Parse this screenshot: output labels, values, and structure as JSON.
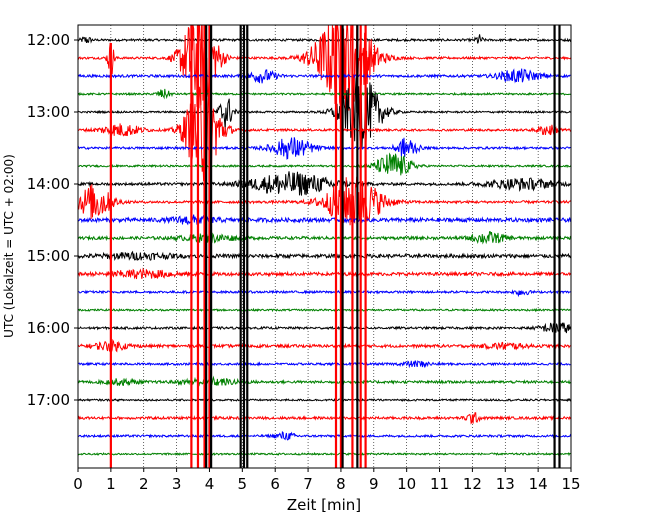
{
  "chart_data": {
    "type": "line",
    "title": "",
    "xlabel": "Zeit  [min]",
    "ylabel": "UTC (Lokalzeit = UTC + 02:00)",
    "xlim": [
      0,
      15
    ],
    "x_ticks": [
      0,
      1,
      2,
      3,
      4,
      5,
      6,
      7,
      8,
      9,
      10,
      11,
      12,
      13,
      14,
      15
    ],
    "x_tick_labels": [
      "0",
      "1",
      "2",
      "3",
      "4",
      "5",
      "6",
      "7",
      "8",
      "9",
      "10",
      "11",
      "12",
      "13",
      "14",
      "15"
    ],
    "y_tick_labels": [
      "12:00",
      "13:00",
      "14:00",
      "15:00",
      "16:00",
      "17:00"
    ],
    "y_tick_rows": [
      0,
      4,
      8,
      12,
      16,
      20
    ],
    "grid": "x dotted",
    "trace_colors": [
      "#000000",
      "#ff0000",
      "#0000ff",
      "#008000"
    ],
    "series": [
      {
        "start": "12:00",
        "amplitude": 0.12,
        "events": [
          {
            "t": 0.25,
            "w": 0.15,
            "a": 0.4
          },
          {
            "t": 12.2,
            "w": 0.1,
            "a": 0.6
          }
        ]
      },
      {
        "start": "12:15",
        "amplitude": 0.12,
        "events": [
          {
            "t": 3.7,
            "w": 0.5,
            "a": 6
          },
          {
            "t": 8.1,
            "w": 0.8,
            "a": 6
          },
          {
            "t": 1.0,
            "w": 0.1,
            "a": 2
          }
        ]
      },
      {
        "start": "12:30",
        "amplitude": 0.14,
        "events": [
          {
            "t": 5.6,
            "w": 0.4,
            "a": 0.7
          },
          {
            "t": 13.4,
            "w": 0.6,
            "a": 0.7
          }
        ]
      },
      {
        "start": "12:45",
        "amplitude": 0.1,
        "events": [
          {
            "t": 2.6,
            "w": 0.2,
            "a": 0.5
          }
        ]
      },
      {
        "start": "13:00",
        "amplitude": 0.1,
        "events": [
          {
            "t": 8.6,
            "w": 0.6,
            "a": 4
          },
          {
            "t": 4.5,
            "w": 0.2,
            "a": 2
          }
        ]
      },
      {
        "start": "13:15",
        "amplitude": 0.12,
        "events": [
          {
            "t": 1.3,
            "w": 0.6,
            "a": 0.7
          },
          {
            "t": 3.8,
            "w": 0.5,
            "a": 6
          },
          {
            "t": 14.3,
            "w": 0.3,
            "a": 0.6
          }
        ]
      },
      {
        "start": "13:30",
        "amplitude": 0.12,
        "events": [
          {
            "t": 6.5,
            "w": 0.6,
            "a": 1.2
          },
          {
            "t": 10.0,
            "w": 0.3,
            "a": 1.2
          }
        ]
      },
      {
        "start": "13:45",
        "amplitude": 0.1,
        "events": [
          {
            "t": 9.6,
            "w": 0.5,
            "a": 1.5
          }
        ]
      },
      {
        "start": "14:00",
        "amplitude": 0.14,
        "events": [
          {
            "t": 6.5,
            "w": 1.2,
            "a": 1.3
          },
          {
            "t": 13.5,
            "w": 1.0,
            "a": 0.6
          }
        ]
      },
      {
        "start": "14:15",
        "amplitude": 0.14,
        "events": [
          {
            "t": 0.5,
            "w": 0.5,
            "a": 2
          },
          {
            "t": 8.4,
            "w": 0.8,
            "a": 3
          }
        ]
      },
      {
        "start": "14:30",
        "amplitude": 0.22,
        "events": [
          {
            "t": 3.5,
            "w": 0.6,
            "a": 0.4
          }
        ]
      },
      {
        "start": "14:45",
        "amplitude": 0.16,
        "events": [
          {
            "t": 12.5,
            "w": 0.5,
            "a": 0.6
          },
          {
            "t": 4.0,
            "w": 0.8,
            "a": 0.4
          }
        ]
      },
      {
        "start": "15:00",
        "amplitude": 0.2,
        "events": [
          {
            "t": 1.8,
            "w": 1.0,
            "a": 0.3
          }
        ]
      },
      {
        "start": "15:15",
        "amplitude": 0.18,
        "events": [
          {
            "t": 2.0,
            "w": 1.0,
            "a": 0.4
          }
        ]
      },
      {
        "start": "15:30",
        "amplitude": 0.12,
        "events": [
          {
            "t": 13.5,
            "w": 0.2,
            "a": 0.4
          }
        ]
      },
      {
        "start": "15:45",
        "amplitude": 0.1,
        "events": []
      },
      {
        "start": "16:00",
        "amplitude": 0.12,
        "events": [
          {
            "t": 14.6,
            "w": 0.5,
            "a": 0.6
          }
        ]
      },
      {
        "start": "16:15",
        "amplitude": 0.16,
        "events": [
          {
            "t": 1.0,
            "w": 0.5,
            "a": 0.5
          },
          {
            "t": 13.0,
            "w": 0.6,
            "a": 0.3
          }
        ]
      },
      {
        "start": "16:30",
        "amplitude": 0.12,
        "events": [
          {
            "t": 10.3,
            "w": 0.4,
            "a": 0.3
          }
        ]
      },
      {
        "start": "16:45",
        "amplitude": 0.14,
        "events": [
          {
            "t": 4.0,
            "w": 0.8,
            "a": 0.4
          },
          {
            "t": 1.3,
            "w": 0.5,
            "a": 0.3
          }
        ]
      },
      {
        "start": "17:00",
        "amplitude": 0.1,
        "events": []
      },
      {
        "start": "17:15",
        "amplitude": 0.14,
        "events": [
          {
            "t": 12.0,
            "w": 0.2,
            "a": 0.6
          }
        ]
      },
      {
        "start": "17:30",
        "amplitude": 0.12,
        "events": [
          {
            "t": 6.3,
            "w": 0.3,
            "a": 0.4
          }
        ]
      },
      {
        "start": "17:45",
        "amplitude": 0.1,
        "events": []
      }
    ],
    "vertical_spikes": [
      {
        "x": 1.0,
        "color": "#ff0000",
        "rows": [
          1,
          24
        ]
      },
      {
        "x": 3.45,
        "color": "#ff0000",
        "rows": [
          0,
          24
        ]
      },
      {
        "x": 3.65,
        "color": "#ff0000",
        "rows": [
          0,
          24
        ]
      },
      {
        "x": 3.85,
        "color": "#ff0000",
        "rows": [
          0,
          24
        ]
      },
      {
        "x": 4.0,
        "color": "#ff0000",
        "rows": [
          0,
          24
        ]
      },
      {
        "x": 3.9,
        "color": "#000000",
        "rows": [
          0,
          24
        ]
      },
      {
        "x": 4.05,
        "color": "#000000",
        "rows": [
          0,
          24
        ]
      },
      {
        "x": 4.95,
        "color": "#000000",
        "rows": [
          0,
          24
        ]
      },
      {
        "x": 5.05,
        "color": "#000000",
        "rows": [
          0,
          24
        ]
      },
      {
        "x": 5.15,
        "color": "#000000",
        "rows": [
          0,
          24
        ]
      },
      {
        "x": 7.85,
        "color": "#ff0000",
        "rows": [
          0,
          24
        ]
      },
      {
        "x": 8.0,
        "color": "#ff0000",
        "rows": [
          0,
          24
        ]
      },
      {
        "x": 8.35,
        "color": "#ff0000",
        "rows": [
          0,
          24
        ]
      },
      {
        "x": 8.6,
        "color": "#ff0000",
        "rows": [
          0,
          24
        ]
      },
      {
        "x": 8.75,
        "color": "#ff0000",
        "rows": [
          0,
          24
        ]
      },
      {
        "x": 8.05,
        "color": "#000000",
        "rows": [
          0,
          24
        ]
      },
      {
        "x": 8.5,
        "color": "#000000",
        "rows": [
          0,
          24
        ]
      },
      {
        "x": 14.5,
        "color": "#000000",
        "rows": [
          0,
          24
        ]
      },
      {
        "x": 14.65,
        "color": "#000000",
        "rows": [
          0,
          24
        ]
      }
    ]
  }
}
